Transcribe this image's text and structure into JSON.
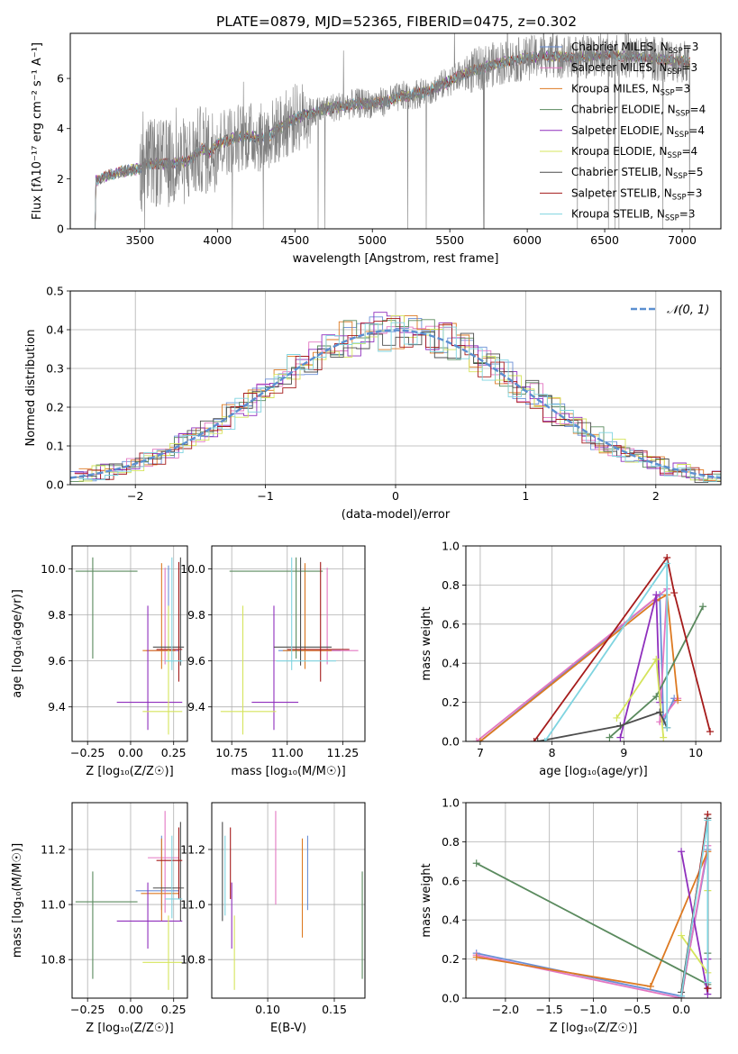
{
  "figure": {
    "title": "PLATE=0879, MJD=52365, FIBERID=0475, z=0.302"
  },
  "colors": {
    "data": "#808080",
    "gauss": "#5b8fd0",
    "grid": "#b0b0b0"
  },
  "models": [
    {
      "name": "Chabrier MILES",
      "nssp": "3",
      "color": "#6a8fd6"
    },
    {
      "name": "Salpeter MILES",
      "nssp": "3",
      "color": "#e377c2"
    },
    {
      "name": "Kroupa MILES",
      "nssp": "3",
      "color": "#dd7a22"
    },
    {
      "name": "Chabrier ELODIE",
      "nssp": "4",
      "color": "#5a8a5e"
    },
    {
      "name": "Salpeter ELODIE",
      "nssp": "4",
      "color": "#8f2fbd"
    },
    {
      "name": "Kroupa ELODIE",
      "nssp": "4",
      "color": "#d5e45c"
    },
    {
      "name": "Chabrier STELIB",
      "nssp": "5",
      "color": "#4d4d4d"
    },
    {
      "name": "Salpeter STELIB",
      "nssp": "3",
      "color": "#a51b1b"
    },
    {
      "name": "Kroupa STELIB",
      "nssp": "3",
      "color": "#7fd4e0"
    }
  ],
  "legend_nssp_prefix": "N",
  "legend_nssp_sub": "SSP",
  "chart_data": [
    {
      "id": "spectrum",
      "type": "line",
      "xlabel": "wavelength [Angstrom, rest frame]",
      "ylabel": "Flux [fλ10⁻¹⁷ erg cm⁻² s⁻¹ A⁻¹]",
      "xlim": [
        3050,
        7250
      ],
      "ylim": [
        0,
        7.8
      ],
      "xticks": [
        3500,
        4000,
        4500,
        5000,
        5500,
        6000,
        6500,
        7000
      ],
      "yticks": [
        0,
        2,
        4,
        6
      ],
      "xrange_data": [
        3210,
        7050
      ],
      "continuum": [
        [
          3210,
          0
        ],
        [
          3212,
          1.9
        ],
        [
          3300,
          2.15
        ],
        [
          3400,
          2.3
        ],
        [
          3500,
          2.4
        ],
        [
          3550,
          2.6
        ],
        [
          3600,
          2.6
        ],
        [
          3700,
          2.6
        ],
        [
          3800,
          2.7
        ],
        [
          3850,
          2.9
        ],
        [
          3900,
          3.2
        ],
        [
          3950,
          3.0
        ],
        [
          4000,
          3.4
        ],
        [
          4100,
          3.6
        ],
        [
          4200,
          3.7
        ],
        [
          4300,
          3.6
        ],
        [
          4400,
          4.0
        ],
        [
          4500,
          4.4
        ],
        [
          4600,
          4.6
        ],
        [
          4700,
          4.8
        ],
        [
          4800,
          4.9
        ],
        [
          4900,
          5.0
        ],
        [
          5000,
          5.0
        ],
        [
          5100,
          5.1
        ],
        [
          5200,
          5.3
        ],
        [
          5300,
          5.4
        ],
        [
          5400,
          5.6
        ],
        [
          5500,
          5.9
        ],
        [
          5600,
          6.2
        ],
        [
          5700,
          6.4
        ],
        [
          5800,
          6.6
        ],
        [
          5900,
          6.7
        ],
        [
          6000,
          6.8
        ],
        [
          6100,
          6.9
        ],
        [
          6200,
          6.9
        ],
        [
          6300,
          6.8
        ],
        [
          6400,
          6.9
        ],
        [
          6500,
          6.95
        ],
        [
          6600,
          6.9
        ],
        [
          6700,
          6.85
        ],
        [
          6800,
          6.8
        ],
        [
          6900,
          6.75
        ],
        [
          7000,
          6.7
        ],
        [
          7050,
          6.6
        ]
      ],
      "legend_position": "top-right"
    },
    {
      "id": "residuals",
      "type": "histogram",
      "xlabel": "(data-model)/error",
      "ylabel": "Normed distribution",
      "xlim": [
        -2.5,
        2.5
      ],
      "ylim": [
        0,
        0.5
      ],
      "xticks": [
        -2,
        -1,
        0,
        1,
        2
      ],
      "yticks": [
        0.0,
        0.1,
        0.2,
        0.3,
        0.4,
        0.5
      ],
      "gauss_label": "𝒩(0, 1)",
      "legend_position": "top-right"
    },
    {
      "id": "age-vs-Z",
      "type": "errorbar",
      "xlabel": "Z [log₁₀(Z/Z☉)]",
      "ylabel": "age  [log₁₀(age/yr)]",
      "xlim": [
        -0.34,
        0.33
      ],
      "ylim": [
        9.25,
        10.1
      ],
      "xticks": [
        -0.25,
        0.0,
        0.25
      ],
      "yticks": [
        9.4,
        9.6,
        9.8,
        10.0
      ],
      "points": [
        {
          "m": 0,
          "x": 0.22,
          "y": 9.645,
          "xerr": [
            0.12,
            0.06
          ],
          "yerr": [
            0.05,
            0.37
          ]
        },
        {
          "m": 1,
          "x": 0.2,
          "y": 9.645,
          "xerr": [
            0.11,
            0.07
          ],
          "yerr": [
            0.06,
            0.36
          ]
        },
        {
          "m": 2,
          "x": 0.18,
          "y": 9.645,
          "xerr": [
            0.11,
            0.08
          ],
          "yerr": [
            0.08,
            0.38
          ]
        },
        {
          "m": 3,
          "x": -0.22,
          "y": 9.99,
          "xerr": [
            0.1,
            0.26
          ],
          "yerr": [
            0.38,
            0.06
          ]
        },
        {
          "m": 4,
          "x": 0.1,
          "y": 9.42,
          "xerr": [
            0.18,
            0.2
          ],
          "yerr": [
            0.12,
            0.42
          ]
        },
        {
          "m": 5,
          "x": 0.22,
          "y": 9.38,
          "xerr": [
            0.15,
            0.08
          ],
          "yerr": [
            0.1,
            0.46
          ]
        },
        {
          "m": 6,
          "x": 0.29,
          "y": 9.66,
          "xerr": [
            0.16,
            0.02
          ],
          "yerr": [
            0.08,
            0.39
          ]
        },
        {
          "m": 7,
          "x": 0.28,
          "y": 9.65,
          "xerr": [
            0.13,
            0.02
          ],
          "yerr": [
            0.14,
            0.38
          ]
        },
        {
          "m": 8,
          "x": 0.24,
          "y": 9.6,
          "xerr": [
            0.04,
            0.06
          ],
          "yerr": [
            0.04,
            0.45
          ]
        }
      ]
    },
    {
      "id": "age-vs-mass",
      "type": "errorbar",
      "xlabel": "mass [log₁₀(M/M☉)]",
      "ylabel": "",
      "xlim": [
        10.66,
        11.35
      ],
      "ylim": [
        9.25,
        10.1
      ],
      "xticks": [
        10.75,
        11.0,
        11.25
      ],
      "yticks": [
        9.4,
        9.6,
        9.8,
        10.0
      ],
      "points": [
        {
          "m": 0,
          "x": 11.08,
          "y": 9.645,
          "xerr": [
            0.12,
            0.16
          ],
          "yerr": [
            0.05,
            0.37
          ]
        },
        {
          "m": 1,
          "x": 11.18,
          "y": 9.645,
          "xerr": [
            0.1,
            0.14
          ],
          "yerr": [
            0.06,
            0.36
          ]
        },
        {
          "m": 2,
          "x": 11.08,
          "y": 9.645,
          "xerr": [
            0.1,
            0.12
          ],
          "yerr": [
            0.08,
            0.38
          ]
        },
        {
          "m": 3,
          "x": 11.04,
          "y": 9.99,
          "xerr": [
            0.3,
            0.12
          ],
          "yerr": [
            0.38,
            0.06
          ]
        },
        {
          "m": 4,
          "x": 10.94,
          "y": 9.42,
          "xerr": [
            0.1,
            0.11
          ],
          "yerr": [
            0.12,
            0.42
          ]
        },
        {
          "m": 5,
          "x": 10.8,
          "y": 9.38,
          "xerr": [
            0.1,
            0.15
          ],
          "yerr": [
            0.1,
            0.46
          ]
        },
        {
          "m": 6,
          "x": 11.06,
          "y": 9.66,
          "xerr": [
            0.12,
            0.14
          ],
          "yerr": [
            0.08,
            0.39
          ]
        },
        {
          "m": 7,
          "x": 11.15,
          "y": 9.65,
          "xerr": [
            0.15,
            0.13
          ],
          "yerr": [
            0.14,
            0.38
          ]
        },
        {
          "m": 8,
          "x": 11.02,
          "y": 9.6,
          "xerr": [
            0.07,
            0.2
          ],
          "yerr": [
            0.04,
            0.45
          ]
        }
      ]
    },
    {
      "id": "weight-vs-age",
      "type": "line",
      "xlabel": "age  [log₁₀(age/yr)]",
      "ylabel": "mass weight",
      "xlim": [
        6.8,
        10.35
      ],
      "ylim": [
        0,
        1
      ],
      "xticks": [
        7,
        8,
        9,
        10
      ],
      "yticks": [
        0.0,
        0.2,
        0.4,
        0.6,
        0.8,
        1.0
      ],
      "series": [
        {
          "m": 0,
          "points": [
            [
              7.0,
              0.0
            ],
            [
              9.5,
              0.75
            ],
            [
              9.55,
              0.1
            ],
            [
              9.7,
              0.22
            ]
          ]
        },
        {
          "m": 1,
          "points": [
            [
              6.95,
              0.0
            ],
            [
              9.6,
              0.78
            ],
            [
              9.5,
              0.1
            ],
            [
              9.75,
              0.22
            ]
          ]
        },
        {
          "m": 2,
          "points": [
            [
              7.0,
              0.0
            ],
            [
              9.45,
              0.72
            ],
            [
              9.6,
              0.75
            ],
            [
              9.75,
              0.21
            ]
          ]
        },
        {
          "m": 3,
          "points": [
            [
              8.8,
              0.02
            ],
            [
              9.45,
              0.23
            ],
            [
              10.1,
              0.69
            ]
          ]
        },
        {
          "m": 4,
          "points": [
            [
              8.95,
              0.02
            ],
            [
              9.45,
              0.75
            ],
            [
              9.5,
              0.2
            ]
          ]
        },
        {
          "m": 5,
          "points": [
            [
              8.9,
              0.12
            ],
            [
              9.45,
              0.42
            ],
            [
              9.55,
              0.02
            ]
          ]
        },
        {
          "m": 6,
          "points": [
            [
              7.8,
              0.0
            ],
            [
              8.95,
              0.08
            ],
            [
              9.5,
              0.15
            ],
            [
              9.6,
              0.07
            ]
          ]
        },
        {
          "m": 7,
          "points": [
            [
              7.75,
              0.0
            ],
            [
              9.6,
              0.94
            ],
            [
              9.7,
              0.76
            ],
            [
              10.2,
              0.05
            ]
          ]
        },
        {
          "m": 8,
          "points": [
            [
              7.9,
              0.0
            ],
            [
              9.6,
              0.91
            ],
            [
              9.6,
              0.07
            ]
          ]
        }
      ]
    },
    {
      "id": "mass-vs-Z",
      "type": "errorbar",
      "xlabel": "Z [log₁₀(Z/Z☉)]",
      "ylabel": "mass [log₁₀(M/M☉)]",
      "xlim": [
        -0.34,
        0.33
      ],
      "ylim": [
        10.66,
        11.37
      ],
      "xticks": [
        -0.25,
        0.0,
        0.25
      ],
      "yticks": [
        10.8,
        11.0,
        11.2
      ],
      "points": [
        {
          "m": 0,
          "x": 0.18,
          "y": 11.05,
          "xerr": [
            0.15,
            0.1
          ],
          "yerr": [
            0.07,
            0.2
          ]
        },
        {
          "m": 1,
          "x": 0.2,
          "y": 11.17,
          "xerr": [
            0.1,
            0.08
          ],
          "yerr": [
            0.2,
            0.17
          ]
        },
        {
          "m": 2,
          "x": 0.18,
          "y": 11.04,
          "xerr": [
            0.12,
            0.1
          ],
          "yerr": [
            0.1,
            0.2
          ]
        },
        {
          "m": 3,
          "x": -0.22,
          "y": 11.01,
          "xerr": [
            0.1,
            0.26
          ],
          "yerr": [
            0.28,
            0.11
          ]
        },
        {
          "m": 4,
          "x": 0.1,
          "y": 10.94,
          "xerr": [
            0.18,
            0.2
          ],
          "yerr": [
            0.1,
            0.14
          ]
        },
        {
          "m": 5,
          "x": 0.22,
          "y": 10.79,
          "xerr": [
            0.15,
            0.08
          ],
          "yerr": [
            0.1,
            0.17
          ]
        },
        {
          "m": 6,
          "x": 0.29,
          "y": 11.06,
          "xerr": [
            0.16,
            0.02
          ],
          "yerr": [
            0.12,
            0.24
          ]
        },
        {
          "m": 7,
          "x": 0.28,
          "y": 11.16,
          "xerr": [
            0.13,
            0.02
          ],
          "yerr": [
            0.14,
            0.12
          ]
        },
        {
          "m": 8,
          "x": 0.24,
          "y": 11.02,
          "xerr": [
            0.04,
            0.06
          ],
          "yerr": [
            0.07,
            0.23
          ]
        }
      ]
    },
    {
      "id": "mass-vs-EBV",
      "type": "errorbar",
      "xlabel": "E(B-V)",
      "ylabel": "",
      "xlim": [
        0.058,
        0.173
      ],
      "ylim": [
        10.66,
        11.37
      ],
      "xticks": [
        0.1,
        0.15
      ],
      "yticks": [
        10.8,
        11.0,
        11.2
      ],
      "points": [
        {
          "m": 0,
          "x": 0.13,
          "y": 11.05,
          "xerr": [
            0,
            0
          ],
          "yerr": [
            0.07,
            0.2
          ]
        },
        {
          "m": 1,
          "x": 0.106,
          "y": 11.17,
          "xerr": [
            0,
            0
          ],
          "yerr": [
            0.17,
            0.17
          ]
        },
        {
          "m": 2,
          "x": 0.126,
          "y": 11.04,
          "xerr": [
            0,
            0
          ],
          "yerr": [
            0.16,
            0.2
          ]
        },
        {
          "m": 3,
          "x": 0.171,
          "y": 11.01,
          "xerr": [
            0,
            0
          ],
          "yerr": [
            0.28,
            0.11
          ]
        },
        {
          "m": 4,
          "x": 0.073,
          "y": 10.94,
          "xerr": [
            0,
            0
          ],
          "yerr": [
            0.1,
            0.14
          ]
        },
        {
          "m": 5,
          "x": 0.075,
          "y": 10.79,
          "xerr": [
            0,
            0
          ],
          "yerr": [
            0.1,
            0.17
          ]
        },
        {
          "m": 6,
          "x": 0.066,
          "y": 11.06,
          "xerr": [
            0,
            0
          ],
          "yerr": [
            0.12,
            0.24
          ]
        },
        {
          "m": 7,
          "x": 0.072,
          "y": 11.16,
          "xerr": [
            0,
            0
          ],
          "yerr": [
            0.14,
            0.12
          ]
        },
        {
          "m": 8,
          "x": 0.068,
          "y": 11.02,
          "xerr": [
            0,
            0
          ],
          "yerr": [
            0.06,
            0.23
          ]
        }
      ]
    },
    {
      "id": "weight-vs-Z",
      "type": "line",
      "xlabel": "Z [log₁₀(Z/Z☉)]",
      "ylabel": "mass weight",
      "xlim": [
        -2.45,
        0.45
      ],
      "ylim": [
        0,
        1
      ],
      "xticks": [
        -2.0,
        -1.5,
        -1.0,
        -0.5,
        0.0
      ],
      "yticks": [
        0.0,
        0.2,
        0.4,
        0.6,
        0.8,
        1.0
      ],
      "series": [
        {
          "m": 0,
          "points": [
            [
              -2.33,
              0.23
            ],
            [
              0.0,
              0.01
            ],
            [
              0.3,
              0.76
            ]
          ]
        },
        {
          "m": 1,
          "points": [
            [
              -2.33,
              0.22
            ],
            [
              0.0,
              0.0
            ],
            [
              0.3,
              0.78
            ]
          ]
        },
        {
          "m": 2,
          "points": [
            [
              -2.33,
              0.21
            ],
            [
              -0.35,
              0.06
            ],
            [
              0.3,
              0.75
            ]
          ]
        },
        {
          "m": 3,
          "points": [
            [
              -2.33,
              0.69
            ],
            [
              0.3,
              0.07
            ],
            [
              0.3,
              0.23
            ]
          ]
        },
        {
          "m": 4,
          "points": [
            [
              0.0,
              0.75
            ],
            [
              0.3,
              0.02
            ],
            [
              0.3,
              0.2
            ]
          ]
        },
        {
          "m": 5,
          "points": [
            [
              0.0,
              0.32
            ],
            [
              0.3,
              0.13
            ],
            [
              0.3,
              0.55
            ]
          ]
        },
        {
          "m": 6,
          "points": [
            [
              0.0,
              0.03
            ],
            [
              0.3,
              0.92
            ],
            [
              0.3,
              0.05
            ]
          ]
        },
        {
          "m": 7,
          "points": [
            [
              0.0,
              0.0
            ],
            [
              0.3,
              0.94
            ],
            [
              0.3,
              0.05
            ]
          ]
        },
        {
          "m": 8,
          "points": [
            [
              0.0,
              0.01
            ],
            [
              0.3,
              0.91
            ],
            [
              0.3,
              0.08
            ]
          ]
        }
      ]
    }
  ]
}
